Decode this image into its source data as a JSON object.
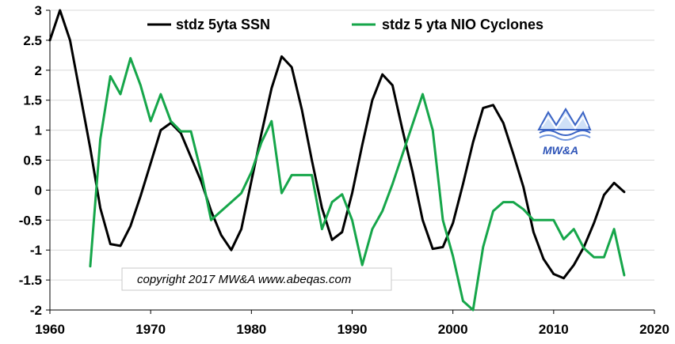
{
  "chart_data": {
    "type": "line",
    "title": "",
    "xlabel": "",
    "ylabel": "",
    "xlim": [
      1960,
      2020
    ],
    "ylim": [
      -2,
      3
    ],
    "x_ticks": [
      1960,
      1970,
      1980,
      1990,
      2000,
      2010,
      2020
    ],
    "y_ticks": [
      3,
      2.5,
      2,
      1.5,
      1,
      0.5,
      0,
      -0.5,
      -1,
      -1.5,
      -2
    ],
    "x_tick_labels": [
      "1960",
      "1970",
      "1980",
      "1990",
      "2000",
      "2010",
      "2020"
    ],
    "y_tick_labels": [
      "3",
      "2.5",
      "2",
      "1.5",
      "1",
      "0.5",
      "0",
      "-0.5",
      "-1",
      "-1.5",
      "-2"
    ],
    "grid": "horizontal",
    "legend_position": "top",
    "series": [
      {
        "name": "stdz 5yta SSN",
        "color": "#000000",
        "x": [
          1960,
          1961,
          1962,
          1963,
          1964,
          1965,
          1966,
          1967,
          1968,
          1969,
          1970,
          1971,
          1972,
          1973,
          1974,
          1975,
          1976,
          1977,
          1978,
          1979,
          1980,
          1981,
          1982,
          1983,
          1984,
          1985,
          1986,
          1987,
          1988,
          1989,
          1990,
          1991,
          1992,
          1993,
          1994,
          1995,
          1996,
          1997,
          1998,
          1999,
          2000,
          2001,
          2002,
          2003,
          2004,
          2005,
          2006,
          2007,
          2008,
          2009,
          2010,
          2011,
          2012,
          2013,
          2014,
          2015,
          2016,
          2017
        ],
        "y": [
          2.5,
          3.0,
          2.5,
          1.6,
          0.7,
          -0.3,
          -0.9,
          -0.93,
          -0.6,
          -0.1,
          0.45,
          1.0,
          1.12,
          0.95,
          0.55,
          0.15,
          -0.35,
          -0.75,
          -1.0,
          -0.65,
          0.15,
          0.95,
          1.7,
          2.23,
          2.05,
          1.35,
          0.5,
          -0.3,
          -0.83,
          -0.7,
          -0.05,
          0.75,
          1.5,
          1.93,
          1.75,
          1.0,
          0.3,
          -0.5,
          -0.98,
          -0.95,
          -0.55,
          0.1,
          0.8,
          1.37,
          1.42,
          1.12,
          0.6,
          0.05,
          -0.7,
          -1.15,
          -1.4,
          -1.47,
          -1.25,
          -0.95,
          -0.55,
          -0.08,
          0.12,
          -0.03
        ]
      },
      {
        "name": "stdz 5 yta NIO Cyclones",
        "color": "#16a64a",
        "x": [
          1964,
          1965,
          1966,
          1967,
          1968,
          1969,
          1970,
          1971,
          1972,
          1973,
          1974,
          1975,
          1976,
          1977,
          1978,
          1979,
          1980,
          1981,
          1982,
          1983,
          1984,
          1985,
          1986,
          1987,
          1988,
          1989,
          1990,
          1991,
          1992,
          1993,
          1994,
          1995,
          1996,
          1997,
          1998,
          1999,
          2000,
          2001,
          2002,
          2003,
          2004,
          2005,
          2006,
          2007,
          2008,
          2009,
          2010,
          2011,
          2012,
          2013,
          2014,
          2015,
          2016,
          2017
        ],
        "y": [
          -1.27,
          0.85,
          1.9,
          1.6,
          2.2,
          1.75,
          1.15,
          1.6,
          1.15,
          0.98,
          0.98,
          0.3,
          -0.5,
          -0.35,
          -0.2,
          -0.05,
          0.3,
          0.8,
          1.15,
          -0.05,
          0.25,
          0.25,
          0.25,
          -0.65,
          -0.2,
          -0.07,
          -0.5,
          -1.25,
          -0.65,
          -0.35,
          0.1,
          0.6,
          1.1,
          1.6,
          1.0,
          -0.5,
          -1.1,
          -1.85,
          -2.0,
          -0.95,
          -0.35,
          -0.2,
          -0.2,
          -0.32,
          -0.5,
          -0.5,
          -0.5,
          -0.82,
          -0.65,
          -0.97,
          -1.12,
          -1.12,
          -0.65,
          -1.42
        ]
      }
    ]
  },
  "logo": {
    "label": "MW&A"
  },
  "copyright": {
    "text": "copyright 2017 MW&A  www.abeqas.com"
  }
}
